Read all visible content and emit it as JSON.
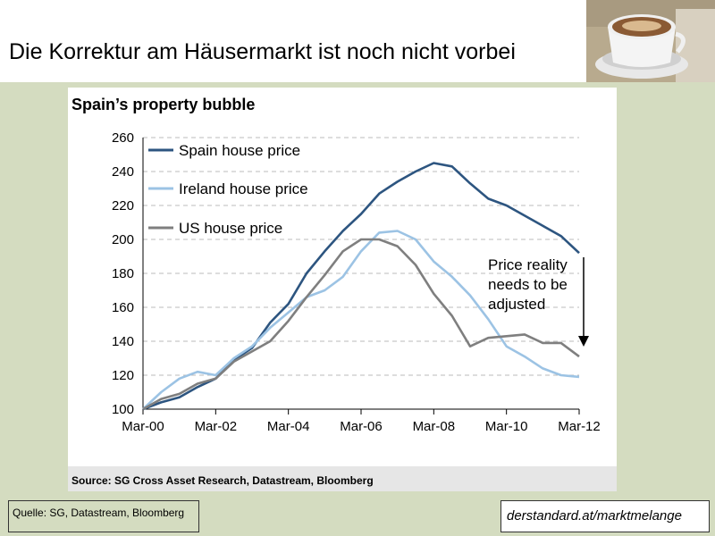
{
  "slide": {
    "title": "Die Korrektur am Häusermarkt ist noch nicht vorbei",
    "source_note": "Quelle: SG, Datastream, Bloomberg",
    "brand": "derstandard.at/marktmelange"
  },
  "colors": {
    "spain": "#2d5580",
    "ireland": "#9cc3e4",
    "us": "#7f7f7f",
    "grid": "#bbbbbb",
    "background": "#d4dcc0"
  },
  "chart_data": {
    "type": "line",
    "title": "Spain’s property bubble",
    "source": "Source: SG Cross Asset Research, Datastream, Bloomberg",
    "annotation": [
      "Price reality",
      "needs to be",
      "adjusted"
    ],
    "xlabel": "",
    "ylabel": "",
    "x_ticks": [
      "Mar-00",
      "Mar-02",
      "Mar-04",
      "Mar-06",
      "Mar-08",
      "Mar-10",
      "Mar-12"
    ],
    "ylim": [
      100,
      260
    ],
    "y_ticks": [
      100,
      120,
      140,
      160,
      180,
      200,
      220,
      240,
      260
    ],
    "grid": "horizontal dashed",
    "legend_position": "top-left",
    "x": [
      "Mar-00",
      "Sep-00",
      "Mar-01",
      "Sep-01",
      "Mar-02",
      "Sep-02",
      "Mar-03",
      "Sep-03",
      "Mar-04",
      "Sep-04",
      "Mar-05",
      "Sep-05",
      "Mar-06",
      "Sep-06",
      "Mar-07",
      "Sep-07",
      "Mar-08",
      "Sep-08",
      "Mar-09",
      "Sep-09",
      "Mar-10",
      "Sep-10",
      "Mar-11",
      "Sep-11",
      "Mar-12"
    ],
    "series": [
      {
        "name": "Spain house price",
        "color": "#2d5580",
        "values": [
          100,
          104,
          107,
          113,
          118,
          129,
          136,
          151,
          162,
          180,
          193,
          205,
          215,
          227,
          234,
          240,
          245,
          243,
          233,
          224,
          220,
          214,
          208,
          202,
          192
        ]
      },
      {
        "name": "Ireland house price",
        "color": "#9cc3e4",
        "values": [
          100,
          110,
          118,
          122,
          120,
          130,
          137,
          148,
          157,
          166,
          170,
          178,
          193,
          204,
          205,
          200,
          187,
          178,
          167,
          153,
          137,
          131,
          124,
          120,
          119
        ]
      },
      {
        "name": "US house price",
        "color": "#7f7f7f",
        "values": [
          100,
          106,
          109,
          115,
          118,
          128,
          134,
          140,
          152,
          166,
          179,
          193,
          200,
          200,
          196,
          185,
          168,
          155,
          137,
          142,
          143,
          144,
          139,
          139,
          131
        ]
      }
    ]
  }
}
